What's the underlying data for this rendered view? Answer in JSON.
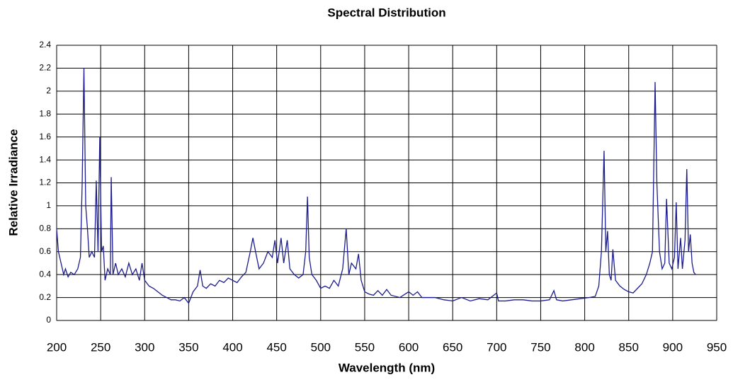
{
  "chart_data": {
    "type": "line",
    "title": "Spectral Distribution",
    "x_label": "Wavelength (nm)",
    "y_label": "Relative Irradiance",
    "xlim": [
      200,
      950
    ],
    "xticks": [
      200,
      250,
      300,
      350,
      400,
      450,
      500,
      550,
      600,
      650,
      700,
      750,
      800,
      850,
      900,
      950
    ],
    "ylim": [
      0,
      2.4
    ],
    "yticks": [
      0,
      0.2,
      0.4,
      0.6,
      0.8,
      1,
      1.2,
      1.4,
      1.6,
      1.8,
      2,
      2.2,
      2.4
    ],
    "grid": true,
    "color": "#1c1c8e",
    "x": [
      200,
      202,
      205,
      208,
      210,
      213,
      216,
      220,
      224,
      227,
      229,
      231,
      233,
      235,
      237,
      240,
      243,
      245,
      247,
      249,
      251,
      253,
      255,
      258,
      261,
      262,
      264,
      267,
      270,
      274,
      278,
      282,
      286,
      290,
      294,
      297,
      300,
      305,
      310,
      315,
      320,
      325,
      330,
      335,
      340,
      345,
      350,
      355,
      360,
      363,
      366,
      370,
      375,
      380,
      385,
      390,
      395,
      400,
      405,
      410,
      415,
      420,
      423,
      426,
      430,
      435,
      440,
      445,
      448,
      451,
      455,
      458,
      462,
      465,
      470,
      475,
      480,
      483,
      485,
      487,
      490,
      495,
      500,
      505,
      510,
      515,
      520,
      525,
      529,
      532,
      535,
      540,
      543,
      546,
      550,
      555,
      560,
      565,
      570,
      575,
      580,
      590,
      600,
      605,
      610,
      615,
      620,
      630,
      640,
      650,
      660,
      670,
      680,
      690,
      700,
      702,
      710,
      720,
      730,
      740,
      750,
      760,
      765,
      768,
      775,
      785,
      795,
      805,
      812,
      816,
      819,
      822,
      824,
      826,
      828,
      830,
      832,
      835,
      840,
      845,
      850,
      855,
      860,
      865,
      870,
      874,
      877,
      880,
      882,
      885,
      888,
      891,
      893,
      896,
      899,
      902,
      904,
      906,
      909,
      911,
      914,
      916,
      918,
      920,
      922,
      924,
      926
    ],
    "values": [
      0.8,
      0.6,
      0.5,
      0.4,
      0.45,
      0.38,
      0.42,
      0.4,
      0.45,
      0.55,
      1.2,
      2.2,
      1.0,
      0.8,
      0.55,
      0.6,
      0.55,
      1.22,
      0.6,
      1.6,
      0.6,
      0.65,
      0.35,
      0.45,
      0.4,
      1.25,
      0.4,
      0.5,
      0.4,
      0.45,
      0.38,
      0.5,
      0.4,
      0.45,
      0.35,
      0.5,
      0.35,
      0.3,
      0.28,
      0.25,
      0.22,
      0.2,
      0.18,
      0.18,
      0.17,
      0.2,
      0.15,
      0.25,
      0.3,
      0.44,
      0.3,
      0.28,
      0.32,
      0.3,
      0.35,
      0.33,
      0.37,
      0.35,
      0.33,
      0.38,
      0.42,
      0.6,
      0.72,
      0.6,
      0.45,
      0.5,
      0.6,
      0.55,
      0.7,
      0.5,
      0.72,
      0.5,
      0.7,
      0.45,
      0.4,
      0.37,
      0.4,
      0.6,
      1.08,
      0.55,
      0.4,
      0.35,
      0.28,
      0.3,
      0.28,
      0.35,
      0.3,
      0.45,
      0.8,
      0.4,
      0.5,
      0.45,
      0.58,
      0.35,
      0.25,
      0.23,
      0.22,
      0.26,
      0.22,
      0.27,
      0.22,
      0.2,
      0.25,
      0.22,
      0.25,
      0.2,
      0.2,
      0.2,
      0.18,
      0.17,
      0.2,
      0.17,
      0.19,
      0.18,
      0.24,
      0.17,
      0.17,
      0.18,
      0.18,
      0.17,
      0.17,
      0.18,
      0.26,
      0.18,
      0.17,
      0.18,
      0.19,
      0.2,
      0.21,
      0.3,
      0.6,
      1.48,
      0.6,
      0.78,
      0.4,
      0.35,
      0.62,
      0.35,
      0.3,
      0.27,
      0.25,
      0.24,
      0.28,
      0.32,
      0.4,
      0.5,
      0.6,
      2.08,
      1.2,
      0.6,
      0.45,
      0.5,
      1.06,
      0.5,
      0.45,
      0.55,
      1.03,
      0.45,
      0.72,
      0.45,
      0.7,
      1.32,
      0.6,
      0.75,
      0.5,
      0.42,
      0.4
    ]
  }
}
